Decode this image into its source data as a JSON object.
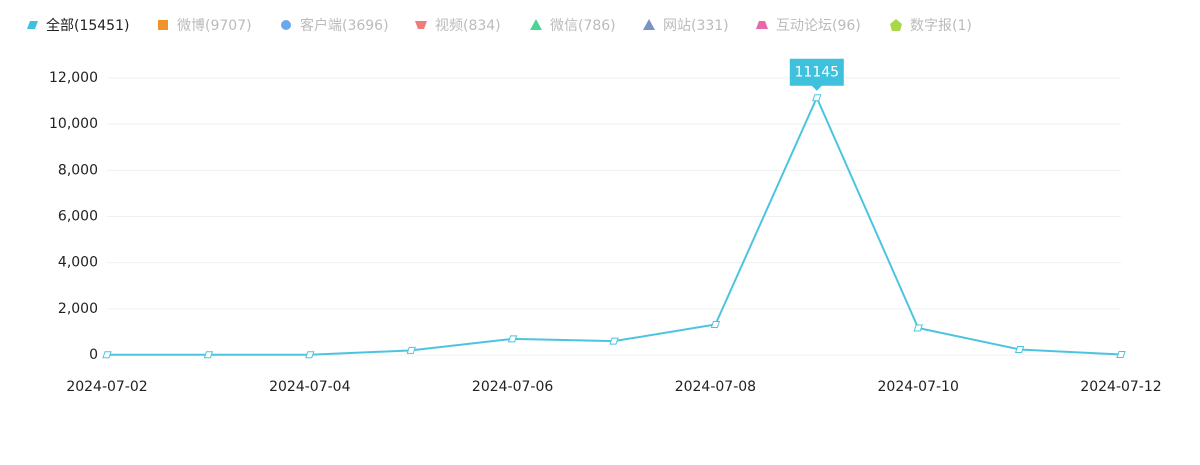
{
  "chart_data": {
    "type": "line",
    "legend": [
      {
        "name": "全部(15451)",
        "color": "#3fc0dd",
        "symbol": "parallelogram",
        "selected": true
      },
      {
        "name": "微博(9707)",
        "color": "#f0932b",
        "symbol": "square",
        "selected": false
      },
      {
        "name": "客户端(3696)",
        "color": "#6aa7ef",
        "symbol": "circle",
        "selected": false
      },
      {
        "name": "视频(834)",
        "color": "#ef7b7b",
        "symbol": "trapezoid-down",
        "selected": false
      },
      {
        "name": "微信(786)",
        "color": "#4cd493",
        "symbol": "triangle",
        "selected": false
      },
      {
        "name": "网站(331)",
        "color": "#7b93c3",
        "symbol": "triangle",
        "selected": false
      },
      {
        "name": "互动论坛(96)",
        "color": "#e868a8",
        "symbol": "trapezoid",
        "selected": false
      },
      {
        "name": "数字报(1)",
        "color": "#a8d84a",
        "symbol": "pentagon",
        "selected": false
      }
    ],
    "categories": [
      "2024-07-02",
      null,
      "2024-07-04",
      null,
      "2024-07-06",
      null,
      "2024-07-08",
      null,
      "2024-07-10",
      null,
      "2024-07-12"
    ],
    "series": [
      {
        "color": "#4cc4e0",
        "values": [
          10,
          10,
          10,
          200,
          700,
          600,
          1320,
          11145,
          1170,
          240,
          20
        ]
      }
    ],
    "highlight_index": 7,
    "ylim": [
      0,
      12000
    ],
    "yticks": [
      0,
      {
        "value": 2000,
        "label": "2,000"
      },
      {
        "value": 4000,
        "label": "4,000"
      },
      {
        "value": 6000,
        "label": "6,000"
      },
      {
        "value": 8000,
        "label": "8,000"
      },
      {
        "value": 10000,
        "label": "10,000"
      },
      {
        "value": 12000,
        "label": "12,000"
      }
    ],
    "grid": true
  }
}
